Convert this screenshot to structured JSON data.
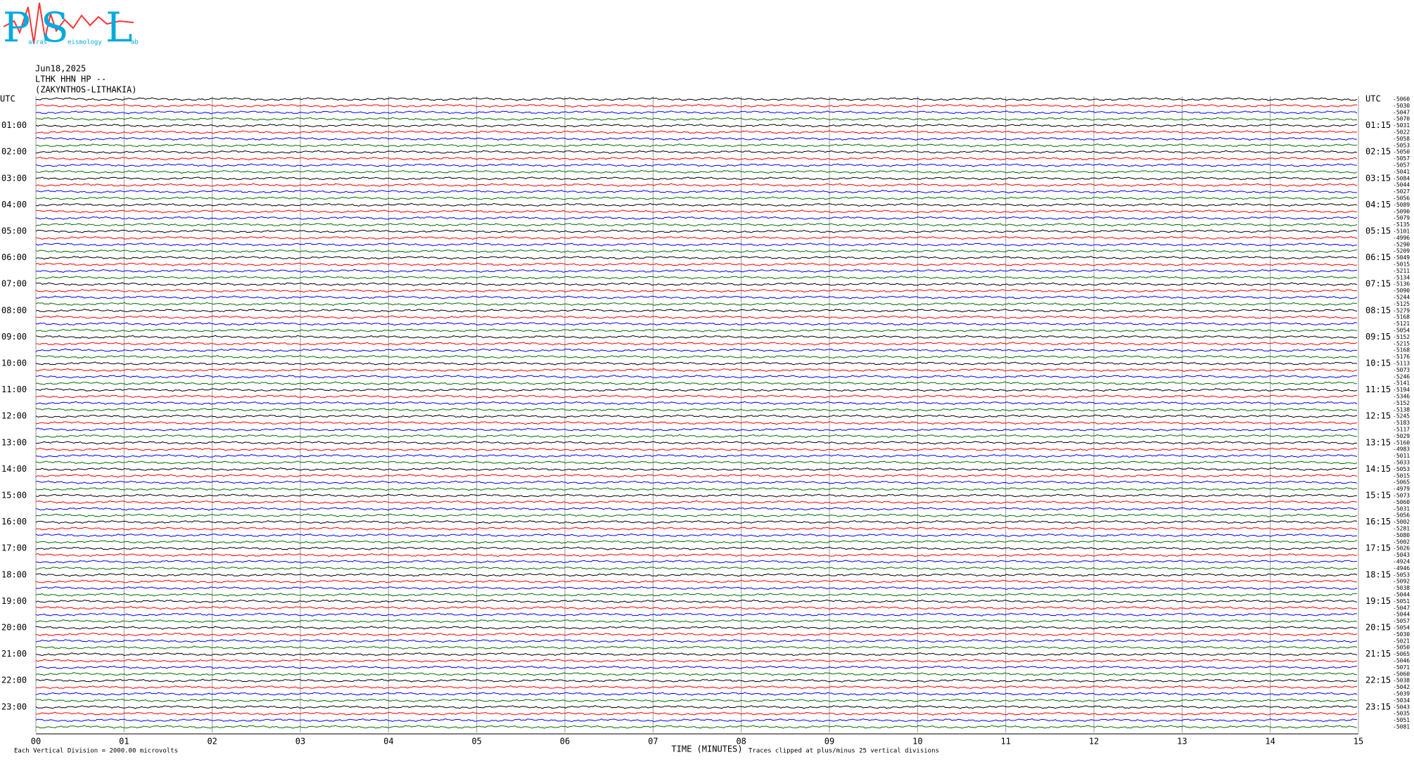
{
  "chart_data": {
    "type": "helicorder",
    "logo": {
      "letters": [
        "P",
        "S",
        "L"
      ],
      "words": [
        "atras",
        "eismology",
        "ab"
      ]
    },
    "date": "Jun18,2025",
    "station": "LTHK HHN HP --",
    "location": "(ZAKYNTHOS-LITHAKIA)",
    "left_labels": [
      "UTC",
      "01:00",
      "02:00",
      "03:00",
      "04:00",
      "05:00",
      "06:00",
      "07:00",
      "08:00",
      "09:00",
      "10:00",
      "11:00",
      "12:00",
      "13:00",
      "14:00",
      "15:00",
      "16:00",
      "17:00",
      "18:00",
      "19:00",
      "20:00",
      "21:00",
      "22:00",
      "23:00"
    ],
    "right_labels": [
      "UTC",
      "01:15",
      "02:15",
      "03:15",
      "04:15",
      "05:15",
      "06:15",
      "07:15",
      "08:15",
      "09:15",
      "10:15",
      "11:15",
      "12:15",
      "13:15",
      "14:15",
      "15:15",
      "16:15",
      "17:15",
      "18:15",
      "19:15",
      "20:15",
      "21:15",
      "22:15",
      "23:15"
    ],
    "trace_offsets": [
      -5060,
      -5030,
      -5047,
      -5070,
      -5031,
      -5022,
      -5058,
      -5053,
      -5050,
      -5057,
      -5057,
      -5041,
      -5084,
      -5044,
      -5027,
      -5056,
      -5089,
      -5090,
      -5079,
      -5135,
      -5101,
      -4996,
      -5290,
      -5209,
      -5049,
      -5015,
      -5211,
      -5134,
      -5136,
      -5090,
      -5244,
      -5125,
      -5279,
      -5168,
      -5121,
      -5054,
      -5152,
      -5215,
      -5168,
      -5176,
      -5113,
      -5073,
      -5246,
      -5141,
      -5194,
      -5346,
      -5152,
      -5138,
      -5245,
      -5183,
      -5117,
      -5029,
      -5160,
      -4983,
      -5011,
      -5033,
      -5053,
      -5015,
      -5065,
      -4979,
      -5073,
      -5060,
      -5031,
      -5056,
      -5002,
      -5281,
      -5080,
      -5002,
      -5026,
      -5043,
      -4924,
      -4946,
      -5053,
      -5092,
      -5038,
      -5044,
      -5051,
      -5047,
      -5044,
      -5057,
      -5054,
      -5030,
      -5021,
      -5050,
      -5065,
      -5046,
      -5071,
      -5060,
      -5038,
      -5042,
      -5039,
      -5034,
      -5043,
      -5035,
      -5051,
      -5081
    ],
    "trace_colors": [
      "#000000",
      "#ff0000",
      "#0000ff",
      "#007000"
    ],
    "x_label": "TIME (MINUTES)",
    "scale_note": "Each Vertical Division = 2000.00 microvolts",
    "clip_note": "Traces clipped at plus/minus 25 vertical divisions",
    "xlim": [
      0,
      15
    ],
    "xticks": [
      {
        "value": 0,
        "label": "00"
      },
      {
        "value": 1,
        "label": "01"
      },
      {
        "value": 2,
        "label": "02"
      },
      {
        "value": 3,
        "label": "03"
      },
      {
        "value": 4,
        "label": "04"
      },
      {
        "value": 5,
        "label": "05"
      },
      {
        "value": 6,
        "label": "06"
      },
      {
        "value": 7,
        "label": "07"
      },
      {
        "value": 8,
        "label": "08"
      },
      {
        "value": 9,
        "label": "09"
      },
      {
        "value": 10,
        "label": "10"
      },
      {
        "value": 11,
        "label": "11"
      },
      {
        "value": 12,
        "label": "12"
      },
      {
        "value": 13,
        "label": "13"
      },
      {
        "value": 14,
        "label": "14"
      },
      {
        "value": 15,
        "label": "15"
      }
    ],
    "grid": true
  }
}
